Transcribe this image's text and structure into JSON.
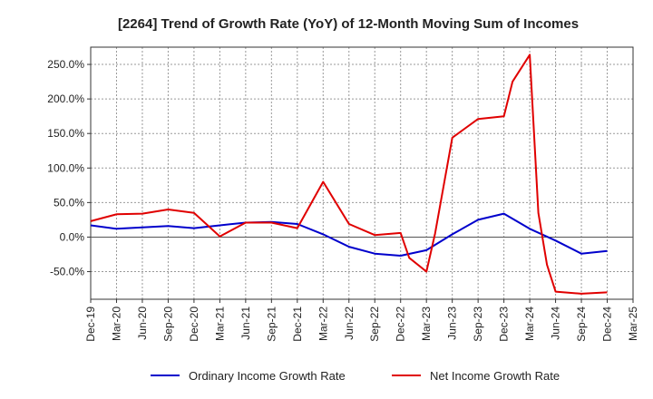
{
  "chart_data": {
    "type": "line",
    "title": "[2264]  Trend of Growth Rate (YoY) of 12-Month Moving Sum of Incomes",
    "xlabel": "",
    "ylabel": "",
    "x_ticks": [
      "Dec-19",
      "Mar-20",
      "Jun-20",
      "Sep-20",
      "Dec-20",
      "Mar-21",
      "Jun-21",
      "Sep-21",
      "Dec-21",
      "Mar-22",
      "Jun-22",
      "Sep-22",
      "Dec-22",
      "Mar-23",
      "Jun-23",
      "Sep-23",
      "Dec-23",
      "Mar-24",
      "Jun-24",
      "Sep-24",
      "Dec-24",
      "Mar-25"
    ],
    "y_ticks": [
      "-50.0%",
      "0.0%",
      "50.0%",
      "100.0%",
      "150.0%",
      "200.0%",
      "250.0%"
    ],
    "y_tick_values": [
      -50,
      0,
      50,
      100,
      150,
      200,
      250
    ],
    "ylim": [
      -90,
      275
    ],
    "grid": true,
    "legend_position": "bottom",
    "series": [
      {
        "name": "Ordinary Income Growth Rate",
        "color": "#0000cc",
        "points": [
          {
            "x": "Dec-19",
            "y": 17
          },
          {
            "x": "Mar-20",
            "y": 12
          },
          {
            "x": "Jun-20",
            "y": 14
          },
          {
            "x": "Sep-20",
            "y": 16
          },
          {
            "x": "Dec-20",
            "y": 13
          },
          {
            "x": "Mar-21",
            "y": 17
          },
          {
            "x": "Jun-21",
            "y": 21
          },
          {
            "x": "Sep-21",
            "y": 22
          },
          {
            "x": "Dec-21",
            "y": 19
          },
          {
            "x": "Mar-22",
            "y": 4
          },
          {
            "x": "Jun-22",
            "y": -14
          },
          {
            "x": "Sep-22",
            "y": -24
          },
          {
            "x": "Dec-22",
            "y": -27
          },
          {
            "x": "Mar-23",
            "y": -19
          },
          {
            "x": "Jun-23",
            "y": 4
          },
          {
            "x": "Sep-23",
            "y": 25
          },
          {
            "x": "Dec-23",
            "y": 34
          },
          {
            "x": "Mar-24",
            "y": 12
          },
          {
            "x": "Jun-24",
            "y": -5
          },
          {
            "x": "Sep-24",
            "y": -24
          },
          {
            "x": "Dec-24",
            "y": -20
          }
        ]
      },
      {
        "name": "Net Income Growth Rate",
        "color": "#e00000",
        "points": [
          {
            "x": "Dec-19",
            "y": 23
          },
          {
            "x": "Mar-20",
            "y": 33
          },
          {
            "x": "Jun-20",
            "y": 34
          },
          {
            "x": "Sep-20",
            "y": 40
          },
          {
            "x": "Dec-20",
            "y": 35
          },
          {
            "x": "Mar-21",
            "y": 1
          },
          {
            "x": "Jun-21",
            "y": 21
          },
          {
            "x": "Sep-21",
            "y": 21
          },
          {
            "x": "Dec-21",
            "y": 13
          },
          {
            "x": "Mar-22",
            "y": 80
          },
          {
            "x": "Jun-22",
            "y": 19
          },
          {
            "x": "Sep-22",
            "y": 3
          },
          {
            "x": "Dec-22",
            "y": 6
          },
          {
            "x": "Jan-23",
            "y": -30
          },
          {
            "x": "Mar-23",
            "y": -50
          },
          {
            "x": "Apr-23",
            "y": 5
          },
          {
            "x": "Jun-23",
            "y": 144
          },
          {
            "x": "Sep-23",
            "y": 171
          },
          {
            "x": "Dec-23",
            "y": 175
          },
          {
            "x": "Jan-24",
            "y": 225
          },
          {
            "x": "Mar-24",
            "y": 264
          },
          {
            "x": "Apr-24",
            "y": 35
          },
          {
            "x": "May-24",
            "y": -40
          },
          {
            "x": "Jun-24",
            "y": -79
          },
          {
            "x": "Sep-24",
            "y": -82
          },
          {
            "x": "Dec-24",
            "y": -80
          }
        ]
      }
    ]
  }
}
